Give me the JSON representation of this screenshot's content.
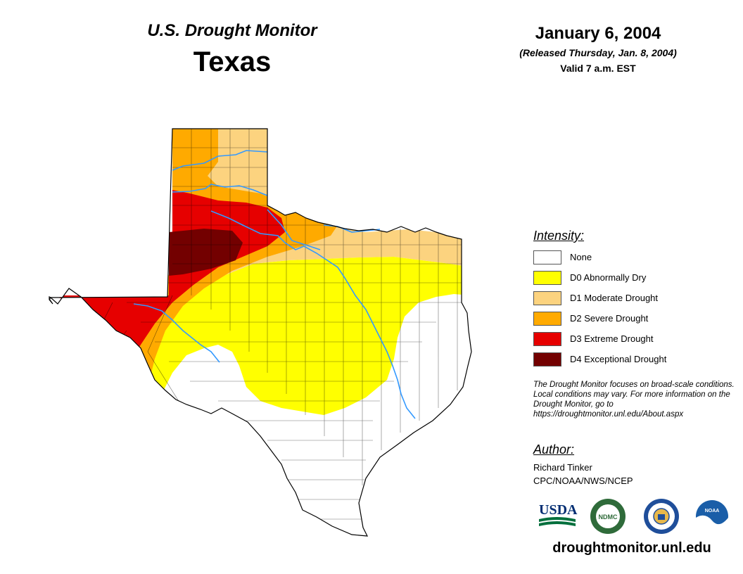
{
  "header": {
    "series_title": "U.S. Drought Monitor",
    "region": "Texas",
    "date": "January 6, 2004",
    "released": "(Released Thursday, Jan. 8, 2004)",
    "valid": "Valid 7 a.m. EST"
  },
  "legend": {
    "title": "Intensity:",
    "items": [
      {
        "label": "None",
        "color": "#ffffff"
      },
      {
        "label": "D0 Abnormally Dry",
        "color": "#ffff00"
      },
      {
        "label": "D1 Moderate Drought",
        "color": "#fcd37f"
      },
      {
        "label": "D2 Severe Drought",
        "color": "#ffaa00"
      },
      {
        "label": "D3 Extreme Drought",
        "color": "#e60000"
      },
      {
        "label": "D4 Exceptional Drought",
        "color": "#730000"
      }
    ]
  },
  "note": "The Drought Monitor focuses on broad-scale conditions. Local conditions may vary. For more information on the Drought Monitor, go to https://droughtmonitor.unl.edu/About.aspx",
  "author": {
    "title": "Author:",
    "name": "Richard Tinker",
    "org": "CPC/NOAA/NWS/NCEP"
  },
  "logos": [
    {
      "name": "usda-logo",
      "text": "USDA"
    },
    {
      "name": "ndmc-logo",
      "text": "NDMC"
    },
    {
      "name": "commerce-seal-logo",
      "text": ""
    },
    {
      "name": "noaa-logo",
      "text": "NOAA"
    }
  ],
  "url": "droughtmonitor.unl.edu",
  "colors": {
    "river": "#3399ff",
    "county_line": "#000000"
  }
}
